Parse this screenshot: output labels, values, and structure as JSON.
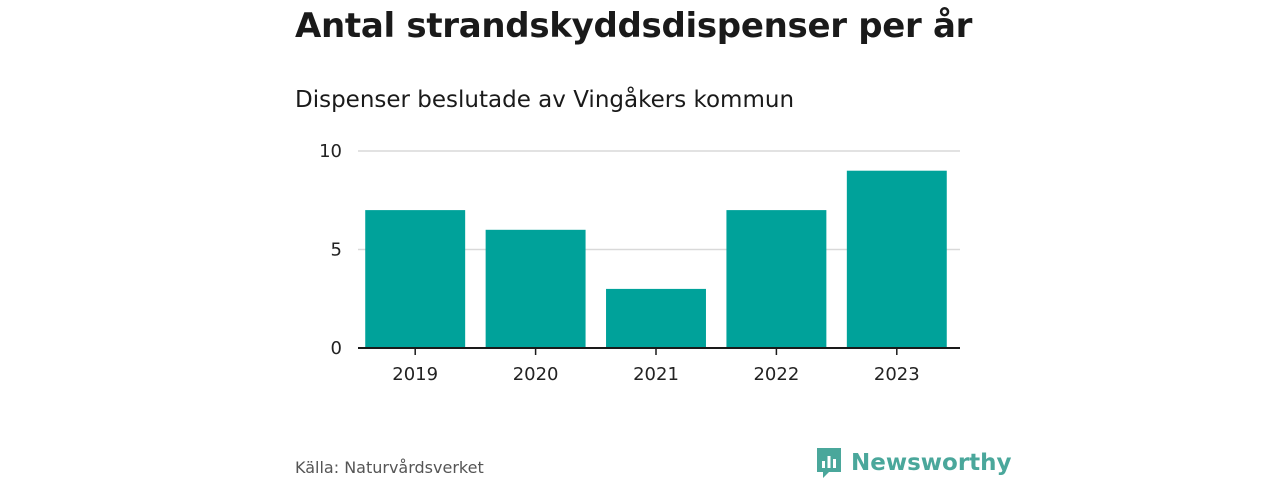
{
  "title": "Antal strandskyddsdispenser per år",
  "subtitle": "Dispenser beslutade av Vingåkers kommun",
  "source": "Källa: Naturvårdsverket",
  "brand": {
    "name": "Newsworthy",
    "icon": "newsworthy-logo-icon",
    "color": "#4aa79b"
  },
  "chart_data": {
    "type": "bar",
    "title": "Antal strandskyddsdispenser per år",
    "subtitle": "Dispenser beslutade av Vingåkers kommun",
    "categories": [
      "2019",
      "2020",
      "2021",
      "2022",
      "2023"
    ],
    "values": [
      7,
      6,
      3,
      7,
      9
    ],
    "ylim": [
      0,
      10
    ],
    "yticks": [
      "0",
      "5",
      "10"
    ],
    "xlabel": "",
    "ylabel": "",
    "grid": true,
    "bar_color": "#00a29a"
  }
}
